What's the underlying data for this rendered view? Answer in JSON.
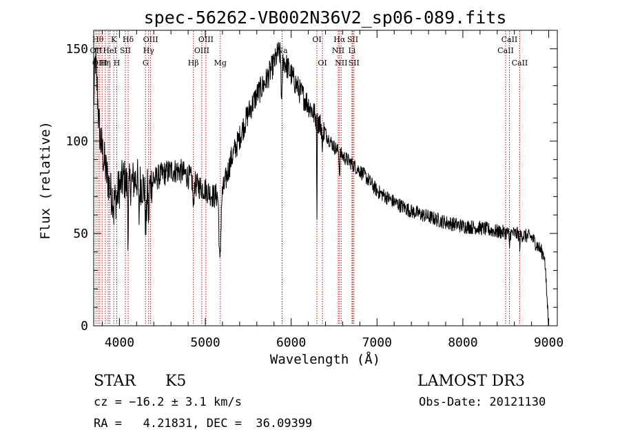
{
  "chart_data": {
    "type": "line",
    "title": "spec-56262-VB002N36V2_sp06-089.fits",
    "xlabel": "Wavelength (Å)",
    "ylabel": "Flux (relative)",
    "xlim": [
      3700,
      9100
    ],
    "ylim": [
      0,
      160
    ],
    "xticks": [
      4000,
      5000,
      6000,
      7000,
      8000,
      9000
    ],
    "xtick_labels": [
      "4000",
      "5000",
      "6000",
      "7000",
      "8000",
      "9000"
    ],
    "yticks": [
      0,
      50,
      100,
      150
    ],
    "ytick_labels": [
      "0",
      "50",
      "100",
      "150"
    ],
    "series": [
      {
        "name": "flux",
        "anchors": [
          [
            3700,
            120
          ],
          [
            3720,
            145
          ],
          [
            3740,
            130
          ],
          [
            3760,
            110
          ],
          [
            3780,
            100
          ],
          [
            3800,
            95
          ],
          [
            3850,
            82
          ],
          [
            3900,
            72
          ],
          [
            3950,
            68
          ],
          [
            4000,
            75
          ],
          [
            4050,
            80
          ],
          [
            4100,
            75
          ],
          [
            4150,
            78
          ],
          [
            4200,
            80
          ],
          [
            4300,
            74
          ],
          [
            4400,
            79
          ],
          [
            4500,
            82
          ],
          [
            4600,
            84
          ],
          [
            4700,
            84
          ],
          [
            4800,
            81
          ],
          [
            4900,
            76
          ],
          [
            5000,
            74
          ],
          [
            5100,
            70
          ],
          [
            5200,
            72
          ],
          [
            5300,
            90
          ],
          [
            5400,
            102
          ],
          [
            5500,
            115
          ],
          [
            5600,
            125
          ],
          [
            5700,
            132
          ],
          [
            5800,
            142
          ],
          [
            5850,
            148
          ],
          [
            5900,
            145
          ],
          [
            6000,
            136
          ],
          [
            6100,
            127
          ],
          [
            6200,
            120
          ],
          [
            6300,
            112
          ],
          [
            6400,
            104
          ],
          [
            6500,
            97
          ],
          [
            6600,
            92
          ],
          [
            6700,
            88
          ],
          [
            6800,
            84
          ],
          [
            6900,
            79
          ],
          [
            7000,
            73
          ],
          [
            7200,
            67
          ],
          [
            7400,
            62
          ],
          [
            7600,
            59
          ],
          [
            7800,
            56
          ],
          [
            8000,
            54
          ],
          [
            8200,
            53
          ],
          [
            8400,
            51
          ],
          [
            8600,
            50
          ],
          [
            8800,
            48
          ],
          [
            8950,
            38
          ],
          [
            9000,
            0
          ]
        ],
        "dips": [
          [
            3934,
            8,
            4
          ],
          [
            3969,
            6,
            4
          ],
          [
            4101,
            25,
            6
          ],
          [
            4227,
            20,
            8
          ],
          [
            4308,
            22,
            10
          ],
          [
            4340,
            18,
            8
          ],
          [
            4861,
            15,
            8
          ],
          [
            5170,
            38,
            14
          ],
          [
            5890,
            28,
            8
          ],
          [
            6300,
            52,
            4
          ],
          [
            6363,
            18,
            4
          ],
          [
            6563,
            12,
            6
          ],
          [
            8542,
            8,
            6
          ],
          [
            8662,
            6,
            6
          ]
        ],
        "noise_amplitude": 5
      }
    ],
    "emission_lines": [
      {
        "wavelength": 3727,
        "label": "OII",
        "row": 2
      },
      {
        "wavelength": 3750,
        "label": "Hθ",
        "row": 1
      },
      {
        "wavelength": 3771,
        "label": "OIII",
        "row": 3
      },
      {
        "wavelength": 3798,
        "label": "",
        "row": 0
      },
      {
        "wavelength": 3835,
        "label": "Hη",
        "row": 3
      },
      {
        "wavelength": 3869,
        "label": "",
        "row": 0
      },
      {
        "wavelength": 3889,
        "label": "HeI",
        "row": 2
      },
      {
        "wavelength": 3934,
        "label": "K",
        "row": 1
      },
      {
        "wavelength": 3969,
        "label": "H",
        "row": 3
      },
      {
        "wavelength": 4069,
        "label": "SII",
        "row": 2
      },
      {
        "wavelength": 4101,
        "label": "Hδ",
        "row": 1
      },
      {
        "wavelength": 4304,
        "label": "G",
        "row": 3
      },
      {
        "wavelength": 4340,
        "label": "Hγ",
        "row": 2
      },
      {
        "wavelength": 4363,
        "label": "OIII",
        "row": 1
      },
      {
        "wavelength": 4861,
        "label": "Hβ",
        "row": 3
      },
      {
        "wavelength": 4959,
        "label": "OIII",
        "row": 2
      },
      {
        "wavelength": 5007,
        "label": "OIII",
        "row": 1
      },
      {
        "wavelength": 5175,
        "label": "Mg",
        "row": 3
      },
      {
        "wavelength": 5894,
        "label": "Na",
        "row": 2
      },
      {
        "wavelength": 6300,
        "label": "OI",
        "row": 1
      },
      {
        "wavelength": 6364,
        "label": "OI",
        "row": 3
      },
      {
        "wavelength": 6548,
        "label": "NII",
        "row": 2
      },
      {
        "wavelength": 6563,
        "label": "Hα",
        "row": 1
      },
      {
        "wavelength": 6583,
        "label": "NII",
        "row": 3
      },
      {
        "wavelength": 6708,
        "label": "Li",
        "row": 2
      },
      {
        "wavelength": 6717,
        "label": "SII",
        "row": 1
      },
      {
        "wavelength": 6731,
        "label": "SII",
        "row": 3
      },
      {
        "wavelength": 8498,
        "label": "CaII",
        "row": 2
      },
      {
        "wavelength": 8542,
        "label": "CaII",
        "row": 1
      },
      {
        "wavelength": 8662,
        "label": "CaII",
        "row": 3
      }
    ]
  },
  "info": {
    "object_class": "STAR",
    "subclass": "K5",
    "survey": "LAMOST DR3",
    "cz": "cz = −16.2 ± 3.1 km/s",
    "obs_date": "Obs-Date: 20121130",
    "coords": "RA =   4.21831, DEC =  36.09399"
  },
  "colors": {
    "spectrum": "#000000",
    "line_marker": "#cc0000",
    "axes": "#000000"
  }
}
